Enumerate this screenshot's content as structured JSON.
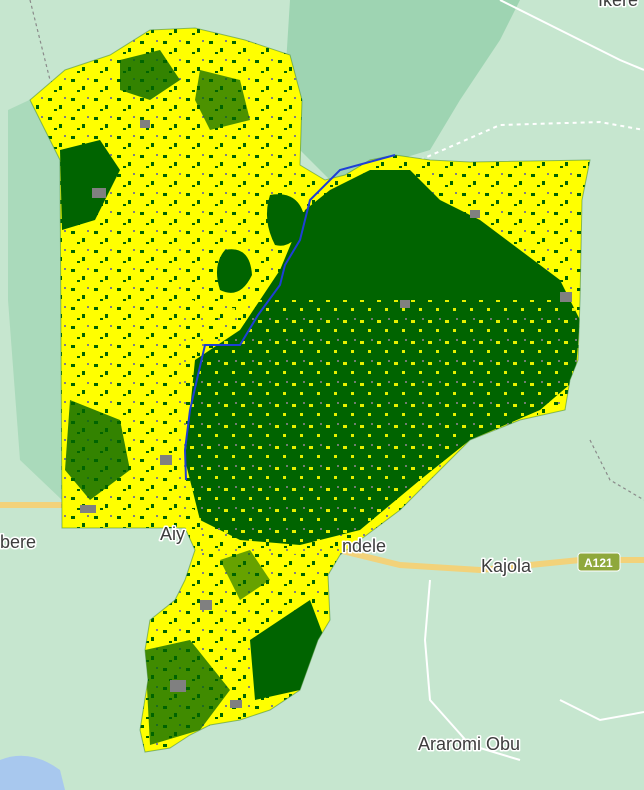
{
  "map": {
    "labels": {
      "bere": "bere",
      "aiyede_partial": "Aiy",
      "ondele_partial": "ndele",
      "kajola": "Kajola",
      "araromi_obu": "Araromi Obu",
      "top_right_partial": "Ikere"
    },
    "road_shield": "A121",
    "colors": {
      "background": "#c6e6cf",
      "forest_park": "#9ed4b2",
      "road_main": "#f2d27a",
      "road_minor": "#ffffff",
      "water": "#a8c8ee",
      "class_dense_vegetation": "#006400",
      "class_sparse_vegetation": "#ffff00",
      "class_bare_builtup": "#808080",
      "river": "#1e3fd6"
    },
    "legend_classes": []
  }
}
